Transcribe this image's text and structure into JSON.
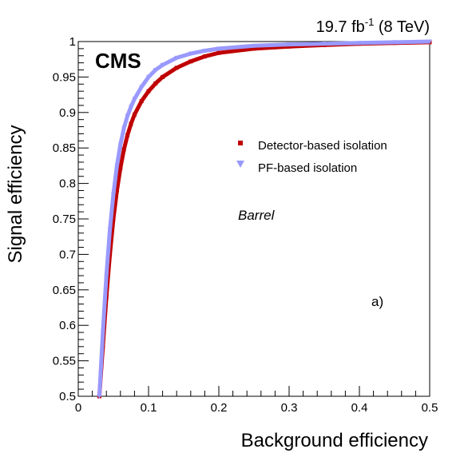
{
  "chart_data": {
    "type": "line",
    "lumi_label": {
      "value": "19.7 fb",
      "exponent": "-1",
      "energy": " (8 TeV)"
    },
    "experiment_label": "CMS",
    "xlabel": "Background efficiency",
    "ylabel": "Signal efficiency",
    "xlim": [
      0,
      0.5
    ],
    "ylim": [
      0.5,
      1.0
    ],
    "x_ticks": [
      "0",
      "0.1",
      "0.2",
      "0.3",
      "0.4",
      "0.5"
    ],
    "y_ticks": [
      "0.5",
      "0.55",
      "0.6",
      "0.65",
      "0.7",
      "0.75",
      "0.8",
      "0.85",
      "0.9",
      "0.95",
      "1"
    ],
    "grid": false,
    "legend_placement": "center-right",
    "annotations": {
      "region": "Barrel",
      "panel": "a)"
    },
    "series": [
      {
        "name": "Detector-based isolation",
        "color": "#c00000",
        "marker": "square",
        "x": [
          0.03,
          0.035,
          0.04,
          0.045,
          0.05,
          0.055,
          0.06,
          0.065,
          0.07,
          0.075,
          0.08,
          0.09,
          0.1,
          0.11,
          0.12,
          0.14,
          0.16,
          0.18,
          0.2,
          0.25,
          0.3,
          0.35,
          0.4,
          0.45,
          0.5
        ],
        "y": [
          0.5,
          0.57,
          0.64,
          0.7,
          0.75,
          0.79,
          0.822,
          0.848,
          0.868,
          0.884,
          0.897,
          0.916,
          0.93,
          0.941,
          0.95,
          0.963,
          0.972,
          0.979,
          0.984,
          0.99,
          0.993,
          0.995,
          0.997,
          0.998,
          0.999
        ]
      },
      {
        "name": "PF-based isolation",
        "color": "#9999ff",
        "marker": "triangle-down",
        "x": [
          0.03,
          0.035,
          0.04,
          0.045,
          0.05,
          0.055,
          0.06,
          0.065,
          0.07,
          0.075,
          0.08,
          0.09,
          0.1,
          0.11,
          0.12,
          0.14,
          0.16,
          0.18,
          0.2,
          0.25,
          0.3,
          0.35,
          0.4,
          0.45,
          0.5
        ],
        "y": [
          0.5,
          0.59,
          0.67,
          0.735,
          0.785,
          0.825,
          0.855,
          0.878,
          0.895,
          0.908,
          0.919,
          0.936,
          0.95,
          0.96,
          0.967,
          0.977,
          0.983,
          0.987,
          0.99,
          0.994,
          0.996,
          0.997,
          0.998,
          0.999,
          1.0
        ]
      }
    ]
  }
}
